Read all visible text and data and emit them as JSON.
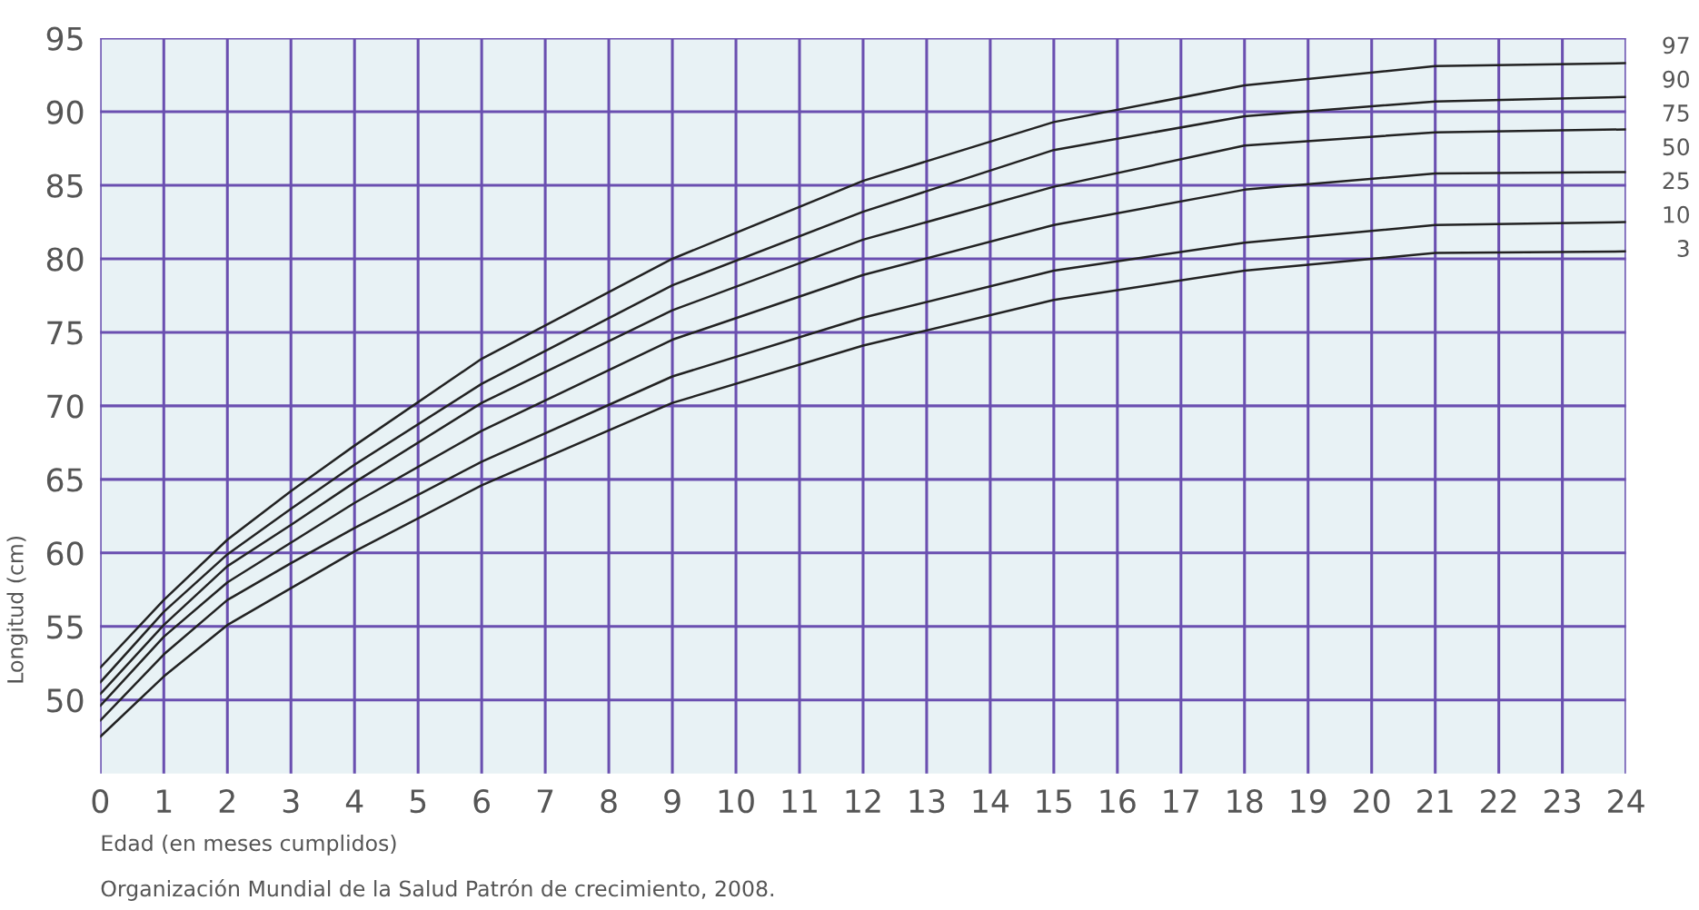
{
  "chart_data": {
    "type": "line",
    "ylabel": "Longitud (cm)",
    "xlabel": "Edad (en meses cumplidos)",
    "x": [
      0,
      1,
      2,
      3,
      4,
      6,
      9,
      12,
      15,
      18,
      21,
      24
    ],
    "series": [
      {
        "color": "#222222",
        "values": [
          52.2,
          56.8,
          60.9,
          64.2,
          67.3,
          73.2,
          80.0,
          85.3,
          89.3,
          91.8,
          93.1,
          93.3
        ]
      },
      {
        "color": "#222222",
        "values": [
          51.2,
          56.0,
          59.9,
          63.0,
          66.0,
          71.5,
          78.2,
          83.2,
          87.4,
          89.7,
          90.7,
          91.0
        ]
      },
      {
        "color": "#222222",
        "values": [
          50.4,
          55.1,
          59.1,
          61.9,
          64.8,
          70.2,
          76.5,
          81.3,
          84.9,
          87.7,
          88.6,
          88.8
        ]
      },
      {
        "color": "#222222",
        "values": [
          49.6,
          54.3,
          58.0,
          60.7,
          63.4,
          68.3,
          74.5,
          78.9,
          82.3,
          84.7,
          85.8,
          85.9
        ]
      },
      {
        "color": "#222222",
        "values": [
          48.6,
          53.1,
          56.8,
          59.3,
          61.7,
          66.2,
          72.0,
          76.0,
          79.2,
          81.1,
          82.3,
          82.5
        ]
      },
      {
        "color": "#222222",
        "values": [
          47.5,
          51.6,
          55.1,
          57.6,
          60.1,
          64.6,
          70.2,
          74.1,
          77.2,
          79.2,
          80.4,
          80.5
        ]
      }
    ],
    "xlim": [
      0,
      24
    ],
    "xticks": [
      0,
      1,
      2,
      3,
      4,
      5,
      6,
      7,
      8,
      9,
      10,
      11,
      12,
      13,
      14,
      15,
      16,
      17,
      18,
      19,
      20,
      21,
      22,
      23,
      24
    ],
    "ylim": [
      45,
      95
    ],
    "yticks": [
      50,
      55,
      60,
      65,
      70,
      75,
      80,
      85,
      90,
      95
    ],
    "grid": true,
    "legend": false,
    "marker": "none",
    "line_style": "solid",
    "annotations": [
      "97",
      "90",
      "75",
      "50",
      "25",
      "10",
      "3",
      "Organización Mundial de la Salud Patrón de crecimiento, 2008."
    ]
  }
}
